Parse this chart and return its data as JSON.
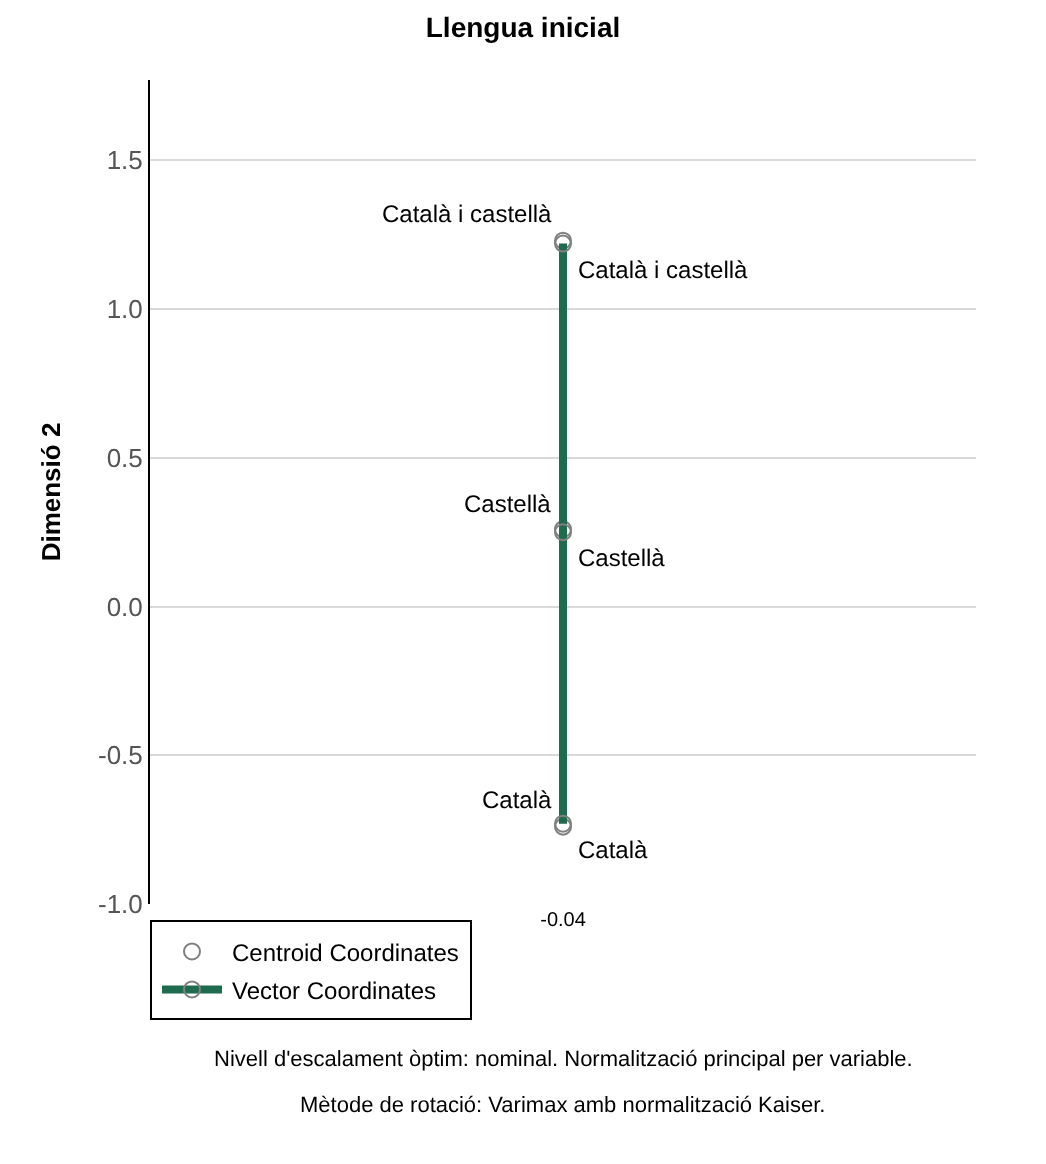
{
  "chart_data": {
    "type": "scatter",
    "title": "Llengua inicial",
    "ylabel": "Dimensió 2",
    "categories": [
      "-0.04"
    ],
    "series": [
      {
        "name": "Centroid Coordinates",
        "color": "#808080",
        "x": [
          "-0.04",
          "-0.04",
          "-0.04"
        ],
        "values": [
          1.23,
          0.26,
          -0.74
        ]
      },
      {
        "name": "Vector Coordinates",
        "type": "line",
        "color": "#1e6b4f",
        "x": [
          "-0.04",
          "-0.04",
          "-0.04"
        ],
        "values": [
          1.22,
          0.25,
          -0.73
        ]
      }
    ],
    "annotations": [
      {
        "text": "Català i castellà",
        "x": "-0.04",
        "y": 1.23
      },
      {
        "text": "Castellà",
        "x": "-0.04",
        "y": 0.26
      },
      {
        "text": "Català",
        "x": "-0.04",
        "y": -0.74
      },
      {
        "text": "Català i castellà",
        "x": "-0.04",
        "y": 1.22
      },
      {
        "text": "Castellà",
        "x": "-0.04",
        "y": 0.25
      },
      {
        "text": "Català",
        "x": "-0.04",
        "y": -0.73
      },
      "Nivell d'escalament òptim: nominal. Normalització principal per variable.",
      "Mètode de rotació: Varimax amb normalització Kaiser."
    ],
    "ylim": [
      -1.0,
      1.77
    ],
    "yticks": [
      {
        "value": -1,
        "label": "-1.0"
      },
      -0.5,
      {
        "value": 0,
        "label": "0.0"
      },
      0.5,
      {
        "value": 1,
        "label": "1.0"
      },
      1.5
    ],
    "grid": "y",
    "legend": "bottom left",
    "marker": "circle",
    "line_style": "solid"
  }
}
